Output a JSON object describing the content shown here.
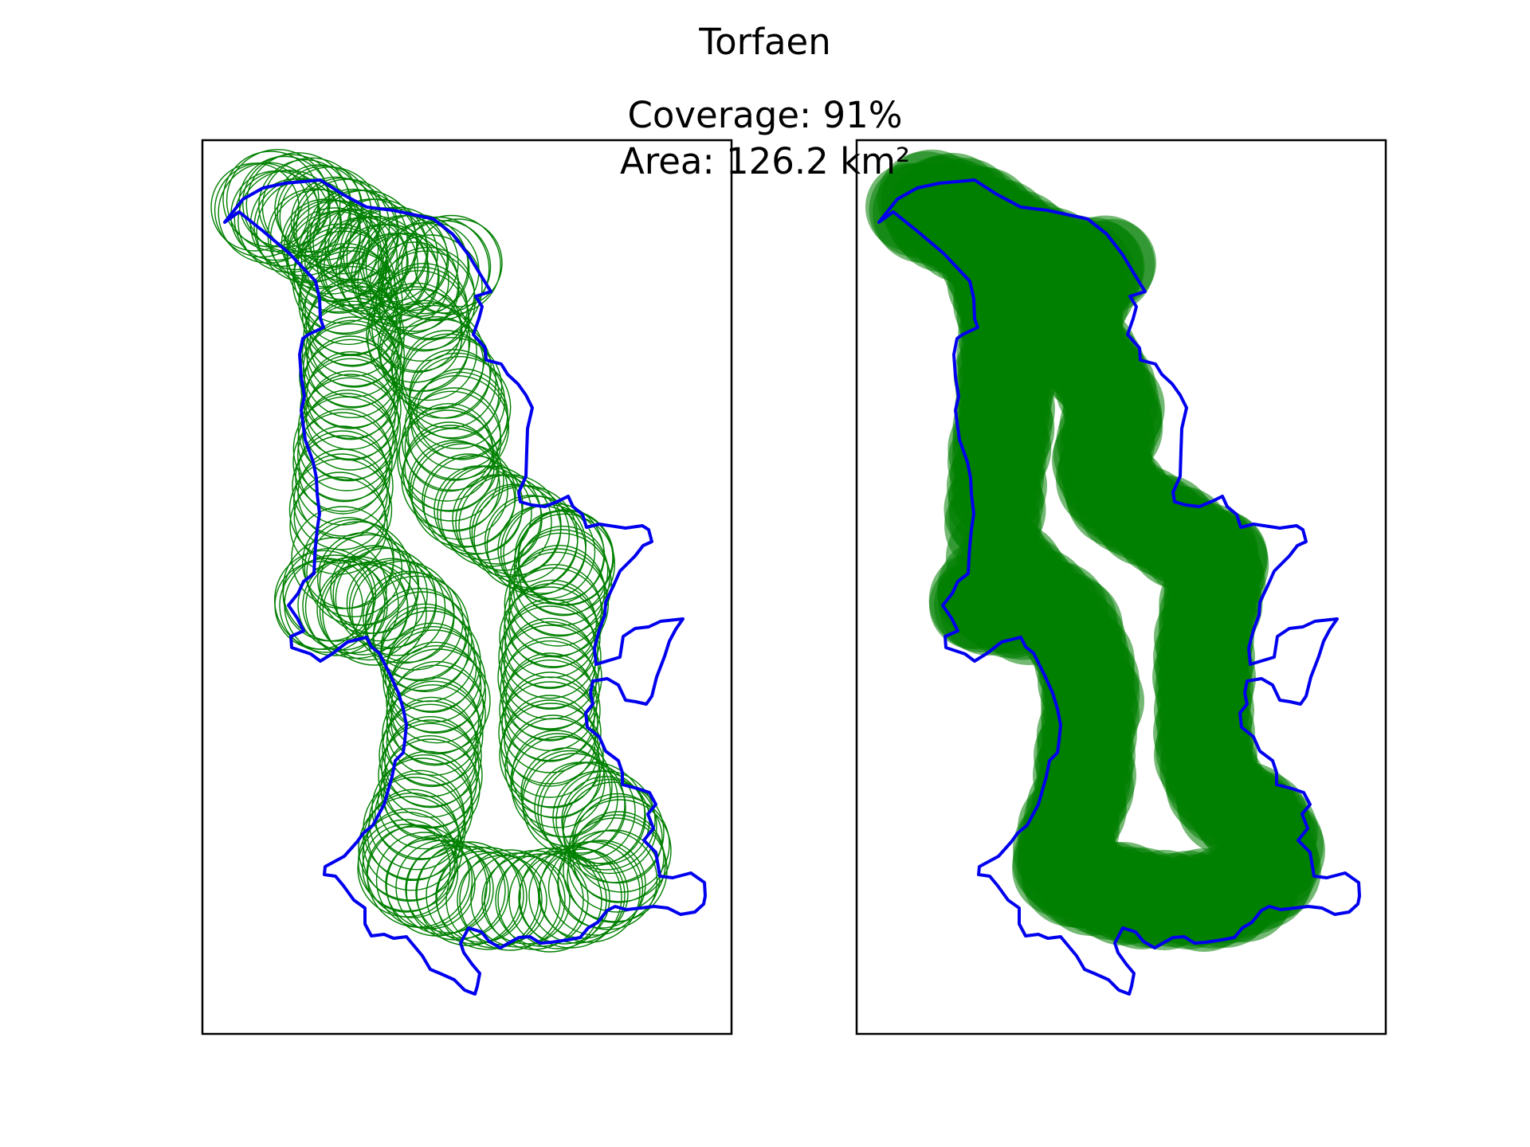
{
  "figure": {
    "title": "Torfaen",
    "subtitle_coverage": "Coverage: 91%",
    "subtitle_area": "Area: 126.2 km²"
  },
  "colors": {
    "boundary": "#0000ee",
    "coverage": "#008000",
    "frame": "#000000",
    "background": "#ffffff"
  },
  "panels": [
    {
      "id": "left",
      "style": "outline-circles"
    },
    {
      "id": "right",
      "style": "filled-circles"
    }
  ]
}
